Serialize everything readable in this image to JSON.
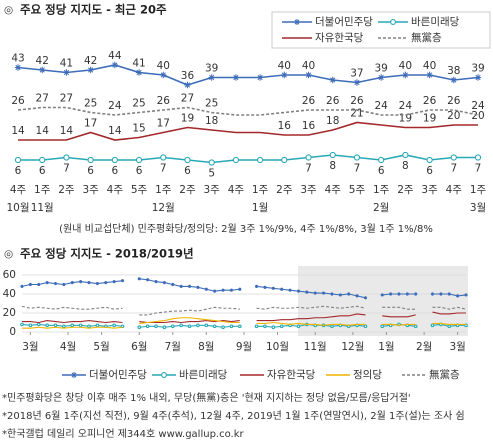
{
  "chart_data": [
    {
      "type": "line",
      "title": "주요 정당 지지도 - 최근 20주",
      "categories": [
        "4주",
        "1주",
        "2주",
        "3주",
        "4주",
        "5주",
        "1주",
        "2주",
        "3주",
        "4주",
        "1주",
        "2주",
        "3주",
        "4주",
        "5주",
        "1주",
        "2주",
        "3주",
        "4주",
        "1주"
      ],
      "month_labels": [
        "10월",
        "11월",
        null,
        null,
        null,
        null,
        "12월",
        null,
        null,
        null,
        "1월",
        null,
        null,
        null,
        null,
        "2월",
        null,
        null,
        null,
        "3월"
      ],
      "ylim": [
        0,
        46
      ],
      "series": [
        {
          "name": "더불어민주당",
          "color": "#3d6cb9",
          "marker": "star",
          "dash": false,
          "values": [
            43,
            42,
            41,
            42,
            44,
            41,
            40,
            36,
            39,
            39,
            39,
            40,
            40,
            38,
            37,
            39,
            40,
            40,
            38,
            39
          ],
          "value_labels": [
            "43",
            "42",
            "41",
            "42",
            "44",
            "41",
            "40",
            "36",
            "39",
            null,
            null,
            "40",
            "40",
            null,
            "37",
            "39",
            "40",
            "40",
            "38",
            "39"
          ]
        },
        {
          "name": "바른미래당",
          "color": "#28a9b5",
          "marker": "circle",
          "dash": false,
          "values": [
            6,
            6,
            7,
            6,
            6,
            6,
            7,
            6,
            5,
            6,
            6,
            6,
            7,
            8,
            7,
            6,
            8,
            6,
            7,
            7
          ],
          "value_labels": [
            "6",
            "6",
            "7",
            "6",
            "6",
            "6",
            "7",
            "6",
            "5",
            null,
            null,
            null,
            "7",
            "8",
            "7",
            "6",
            "8",
            "6",
            "7",
            "7"
          ]
        },
        {
          "name": "자유한국당",
          "color": "#a3282b",
          "marker": "none",
          "dash": false,
          "values": [
            14,
            14,
            14,
            17,
            14,
            15,
            17,
            19,
            18,
            17,
            17,
            16,
            16,
            18,
            21,
            20,
            19,
            19,
            20,
            20
          ],
          "value_labels": [
            "14",
            "14",
            "14",
            "17",
            "14",
            "15",
            "17",
            "19",
            "18",
            null,
            null,
            "16",
            "16",
            "18",
            "21",
            null,
            "19",
            "19",
            "20",
            "20"
          ]
        },
        {
          "name": "無黨층",
          "color": "#808080",
          "marker": "none",
          "dash": true,
          "values": [
            26,
            27,
            27,
            25,
            24,
            25,
            26,
            27,
            25,
            24,
            24,
            25,
            26,
            26,
            26,
            24,
            24,
            26,
            26,
            24
          ],
          "value_labels": [
            "26",
            "27",
            "27",
            "25",
            "24",
            "25",
            "26",
            "27",
            "25",
            null,
            null,
            null,
            "26",
            "26",
            "26",
            "24",
            "24",
            "26",
            "26",
            "24"
          ]
        }
      ],
      "note": "(원내 비교섭단체) 민주평화당/정의당: 2월 3주 1%/9%, 4주 1%/8%, 3월 1주 1%/8%"
    },
    {
      "type": "line",
      "title": "주요 정당 지지도 - 2018/2019년",
      "x": [
        0,
        1,
        2,
        3,
        4,
        5,
        6,
        7,
        8,
        9,
        10,
        11,
        12,
        13,
        14,
        15,
        16,
        17,
        18,
        19,
        20,
        21,
        22,
        23,
        24,
        25,
        26,
        27,
        28,
        29,
        30,
        31,
        32,
        33,
        34,
        35,
        36,
        37,
        38,
        39,
        40,
        41,
        42,
        43,
        44,
        45,
        46,
        47,
        48,
        49,
        50,
        51,
        52,
        53
      ],
      "xlim": [
        0,
        53
      ],
      "xticks": [
        {
          "value": 1,
          "label": "3월"
        },
        {
          "value": 5.5,
          "label": "4월"
        },
        {
          "value": 9.5,
          "label": "5월"
        },
        {
          "value": 14,
          "label": "6월"
        },
        {
          "value": 18,
          "label": "7월"
        },
        {
          "value": 22,
          "label": "8월"
        },
        {
          "value": 26.5,
          "label": "9월"
        },
        {
          "value": 30.5,
          "label": "10월"
        },
        {
          "value": 35,
          "label": "11월"
        },
        {
          "value": 39.5,
          "label": "12월"
        },
        {
          "value": 43.5,
          "label": "1월"
        },
        {
          "value": 48,
          "label": "2월"
        },
        {
          "value": 52,
          "label": "3월"
        }
      ],
      "ylim": [
        0,
        60
      ],
      "yticks": [
        0,
        20,
        40,
        60
      ],
      "grid": true,
      "series": [
        {
          "name": "더불어민주당",
          "color": "#3d6cb9",
          "marker": "star",
          "dash": false,
          "values": [
            48,
            50,
            50,
            52,
            51,
            50,
            52,
            53,
            52,
            51,
            52,
            53,
            54,
            null,
            56,
            55,
            53,
            52,
            50,
            48,
            48,
            47,
            45,
            43,
            44,
            44,
            45,
            null,
            48,
            47,
            46,
            45,
            44,
            43,
            42,
            41,
            41,
            40,
            39,
            40,
            38,
            36,
            null,
            39,
            40,
            40,
            40,
            40,
            null,
            40,
            40,
            40,
            38,
            39
          ]
        },
        {
          "name": "바른미래당",
          "color": "#28a9b5",
          "marker": "circle",
          "dash": false,
          "values": [
            8,
            7,
            8,
            7,
            7,
            6,
            7,
            7,
            6,
            7,
            6,
            7,
            6,
            null,
            5,
            6,
            6,
            5,
            6,
            7,
            6,
            7,
            7,
            6,
            5,
            6,
            6,
            null,
            6,
            6,
            5,
            6,
            7,
            6,
            8,
            7,
            7,
            6,
            7,
            6,
            7,
            6,
            null,
            6,
            7,
            8,
            7,
            6,
            null,
            7,
            8,
            6,
            7,
            7
          ]
        },
        {
          "name": "자유한국당",
          "color": "#a3282b",
          "marker": "none",
          "dash": false,
          "values": [
            11,
            11,
            10,
            12,
            11,
            10,
            11,
            11,
            12,
            11,
            10,
            11,
            10,
            null,
            11,
            10,
            10,
            10,
            11,
            10,
            11,
            11,
            12,
            11,
            12,
            11,
            12,
            null,
            12,
            12,
            12,
            13,
            13,
            14,
            14,
            15,
            15,
            16,
            17,
            17,
            19,
            18,
            null,
            17,
            16,
            16,
            16,
            18,
            null,
            21,
            19,
            19,
            20,
            20
          ]
        },
        {
          "name": "정의당",
          "color": "#f0b400",
          "marker": "none",
          "dash": false,
          "values": [
            4,
            4,
            5,
            4,
            5,
            4,
            5,
            5,
            4,
            5,
            5,
            4,
            5,
            null,
            9,
            10,
            11,
            12,
            14,
            15,
            15,
            14,
            13,
            12,
            11,
            10,
            10,
            null,
            9,
            9,
            10,
            9,
            8,
            9,
            8,
            8,
            7,
            8,
            8,
            7,
            8,
            8,
            null,
            8,
            8,
            7,
            8,
            8,
            null,
            9,
            9,
            8,
            8,
            8
          ]
        },
        {
          "name": "無黨층",
          "color": "#808080",
          "marker": "none",
          "dash": true,
          "values": [
            27,
            25,
            26,
            25,
            24,
            26,
            25,
            24,
            24,
            25,
            26,
            24,
            25,
            null,
            18,
            18,
            20,
            21,
            22,
            22,
            23,
            22,
            24,
            26,
            25,
            25,
            24,
            null,
            25,
            24,
            26,
            25,
            25,
            26,
            25,
            26,
            27,
            26,
            25,
            26,
            27,
            25,
            null,
            26,
            26,
            26,
            24,
            24,
            null,
            26,
            26,
            24,
            26,
            24
          ]
        }
      ],
      "notes": [
        "*민주평화당은 창당 이후 매주 1% 내외, 무당(無黨)층은 '현재 지지하는 정당 없음/모름/응답거절'",
        "*2018년 6월 1주(지선 직전), 9월 4주(추석), 12월 4주, 2019년 1월 1주(연말연시), 2월 1주(설)는 조사 쉼",
        "*한국갤럽 데일리 오피니언 제344호 www.gallup.co.kr"
      ]
    }
  ]
}
